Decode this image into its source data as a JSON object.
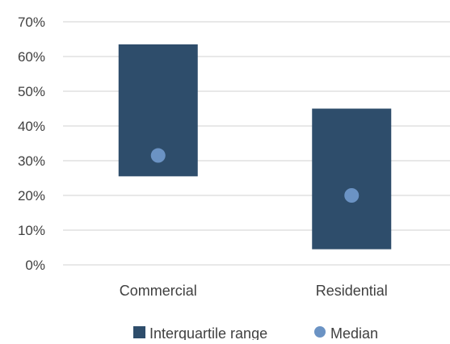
{
  "chart_data": {
    "type": "bar",
    "subtype": "floating-range-with-median",
    "categories": [
      "Commercial",
      "Residential"
    ],
    "series": [
      {
        "name": "Interquartile range",
        "low": [
          25.5,
          4.5
        ],
        "high": [
          63.5,
          45.0
        ],
        "color": "#2e4d6b"
      },
      {
        "name": "Median",
        "values": [
          31.5,
          20.0
        ],
        "color": "#6b93c4"
      }
    ],
    "yticks": [
      0,
      10,
      20,
      30,
      40,
      50,
      60,
      70
    ],
    "ytick_labels": [
      "0%",
      "10%",
      "20%",
      "30%",
      "40%",
      "50%",
      "60%",
      "70%"
    ],
    "ylim": [
      0,
      70
    ],
    "grid": true,
    "legend_position": "bottom",
    "title": "",
    "xlabel": "",
    "ylabel": ""
  }
}
